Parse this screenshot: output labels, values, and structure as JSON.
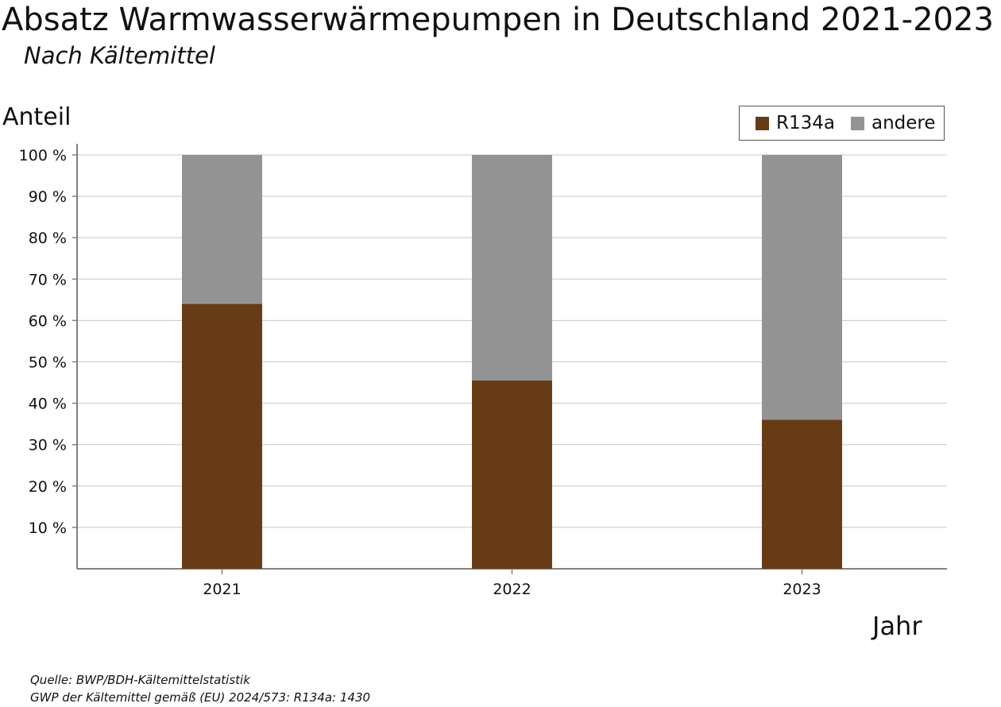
{
  "header": {
    "title": "Absatz Warmwasserwärmepumpen in Deutschland 2021-2023",
    "subtitle": "Nach Kältemittel"
  },
  "axes": {
    "ylabel": "Anteil",
    "xlabel": "Jahr"
  },
  "source": {
    "line1": "Quelle: BWP/BDH-Kältemittelstatistik",
    "line2": "GWP der Kältemittel gemäß (EU) 2024/573: R134a: 1430"
  },
  "legend": {
    "items": [
      {
        "label": "R134a",
        "color": "#683b17"
      },
      {
        "label": "andere",
        "color": "#939393"
      }
    ]
  },
  "chart_data": {
    "type": "bar",
    "stacked": true,
    "categories": [
      "2021",
      "2022",
      "2023"
    ],
    "series": [
      {
        "name": "R134a",
        "values": [
          64,
          45.5,
          36
        ],
        "color": "#683b17"
      },
      {
        "name": "andere",
        "values": [
          36,
          54.5,
          64
        ],
        "color": "#939393"
      }
    ],
    "title": "Absatz Warmwasserwärmepumpen in Deutschland 2021-2023",
    "subtitle": "Nach Kältemittel",
    "xlabel": "Jahr",
    "ylabel": "Anteil",
    "ylim": [
      0,
      100
    ],
    "yticks": [
      "10 %",
      "20 %",
      "30 %",
      "40 %",
      "50 %",
      "60 %",
      "70 %",
      "80 %",
      "90 %",
      "100 %"
    ],
    "grid": true,
    "legend_position": "top-right"
  }
}
